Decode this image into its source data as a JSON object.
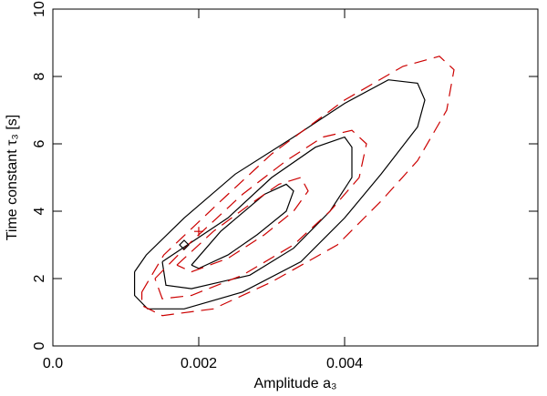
{
  "chart_data": {
    "type": "contour",
    "xlabel": "Amplitude a₃",
    "ylabel": "Time constant τ₃ [s]",
    "xlim": [
      0,
      0.00665
    ],
    "ylim": [
      0,
      10
    ],
    "xticks": [
      {
        "value": 0,
        "label": "0.0"
      },
      0.002,
      0.004
    ],
    "yticks": [
      0,
      2,
      4,
      6,
      8,
      10
    ],
    "series": [
      {
        "color": "#000000",
        "dash": false,
        "x": [
          0.00112,
          0.00128,
          0.0018,
          0.0025,
          0.0033,
          0.004,
          0.0046,
          0.005,
          0.0051,
          0.005,
          0.0045,
          0.004,
          0.0034,
          0.0026,
          0.0018,
          0.0013,
          0.00112,
          0.00112
        ],
        "y": [
          2.2,
          2.7,
          3.8,
          5.1,
          6.2,
          7.2,
          7.9,
          7.8,
          7.3,
          6.5,
          5.1,
          3.8,
          2.5,
          1.6,
          1.1,
          1.1,
          1.5,
          2.2
        ]
      },
      {
        "color": "#000000",
        "dash": false,
        "x": [
          0.0015,
          0.0024,
          0.003,
          0.0036,
          0.004,
          0.0041,
          0.0041,
          0.0038,
          0.0033,
          0.0027,
          0.0019,
          0.00155,
          0.0015
        ],
        "y": [
          2.5,
          3.8,
          5.0,
          5.9,
          6.2,
          5.9,
          5.0,
          4.0,
          2.9,
          2.1,
          1.7,
          1.8,
          2.5
        ]
      },
      {
        "color": "#000000",
        "dash": false,
        "x": [
          0.0019,
          0.0023,
          0.0029,
          0.0032,
          0.0033,
          0.0032,
          0.0028,
          0.0024,
          0.002,
          0.0019
        ],
        "y": [
          2.4,
          3.4,
          4.5,
          4.8,
          4.6,
          4.0,
          3.3,
          2.7,
          2.3,
          2.4
        ]
      },
      {
        "color": "#cc0000",
        "dash": true,
        "x": [
          0.00122,
          0.00152,
          0.0023,
          0.003,
          0.004,
          0.0048,
          0.0053,
          0.0055,
          0.0054,
          0.005,
          0.0045,
          0.0039,
          0.003,
          0.0022,
          0.0015,
          0.00122,
          0.00122
        ],
        "y": [
          1.6,
          2.7,
          4.3,
          5.7,
          7.3,
          8.3,
          8.6,
          8.2,
          7.0,
          5.5,
          4.3,
          3.0,
          1.9,
          1.1,
          0.9,
          1.2,
          1.6
        ]
      },
      {
        "color": "#cc0000",
        "dash": true,
        "x": [
          0.0014,
          0.0019,
          0.0026,
          0.0032,
          0.0037,
          0.0041,
          0.0043,
          0.0042,
          0.0038,
          0.0033,
          0.0026,
          0.0019,
          0.0015,
          0.0014
        ],
        "y": [
          2.0,
          3.1,
          4.5,
          5.5,
          6.2,
          6.4,
          6.0,
          5.0,
          4.0,
          3.0,
          2.1,
          1.5,
          1.4,
          2.0
        ]
      },
      {
        "color": "#cc0000",
        "dash": true,
        "x": [
          0.0017,
          0.0022,
          0.0027,
          0.0031,
          0.0034,
          0.0035,
          0.0033,
          0.0029,
          0.0024,
          0.0019,
          0.0017
        ],
        "y": [
          2.4,
          3.4,
          4.2,
          4.8,
          5.0,
          4.6,
          4.0,
          3.3,
          2.6,
          2.2,
          2.4
        ]
      }
    ],
    "points": [
      {
        "x": 0.0018,
        "y": 3.0,
        "marker": "diamond",
        "color": "#000000"
      },
      {
        "x": 0.002,
        "y": 3.4,
        "marker": "plus",
        "color": "#cc0000"
      }
    ]
  }
}
